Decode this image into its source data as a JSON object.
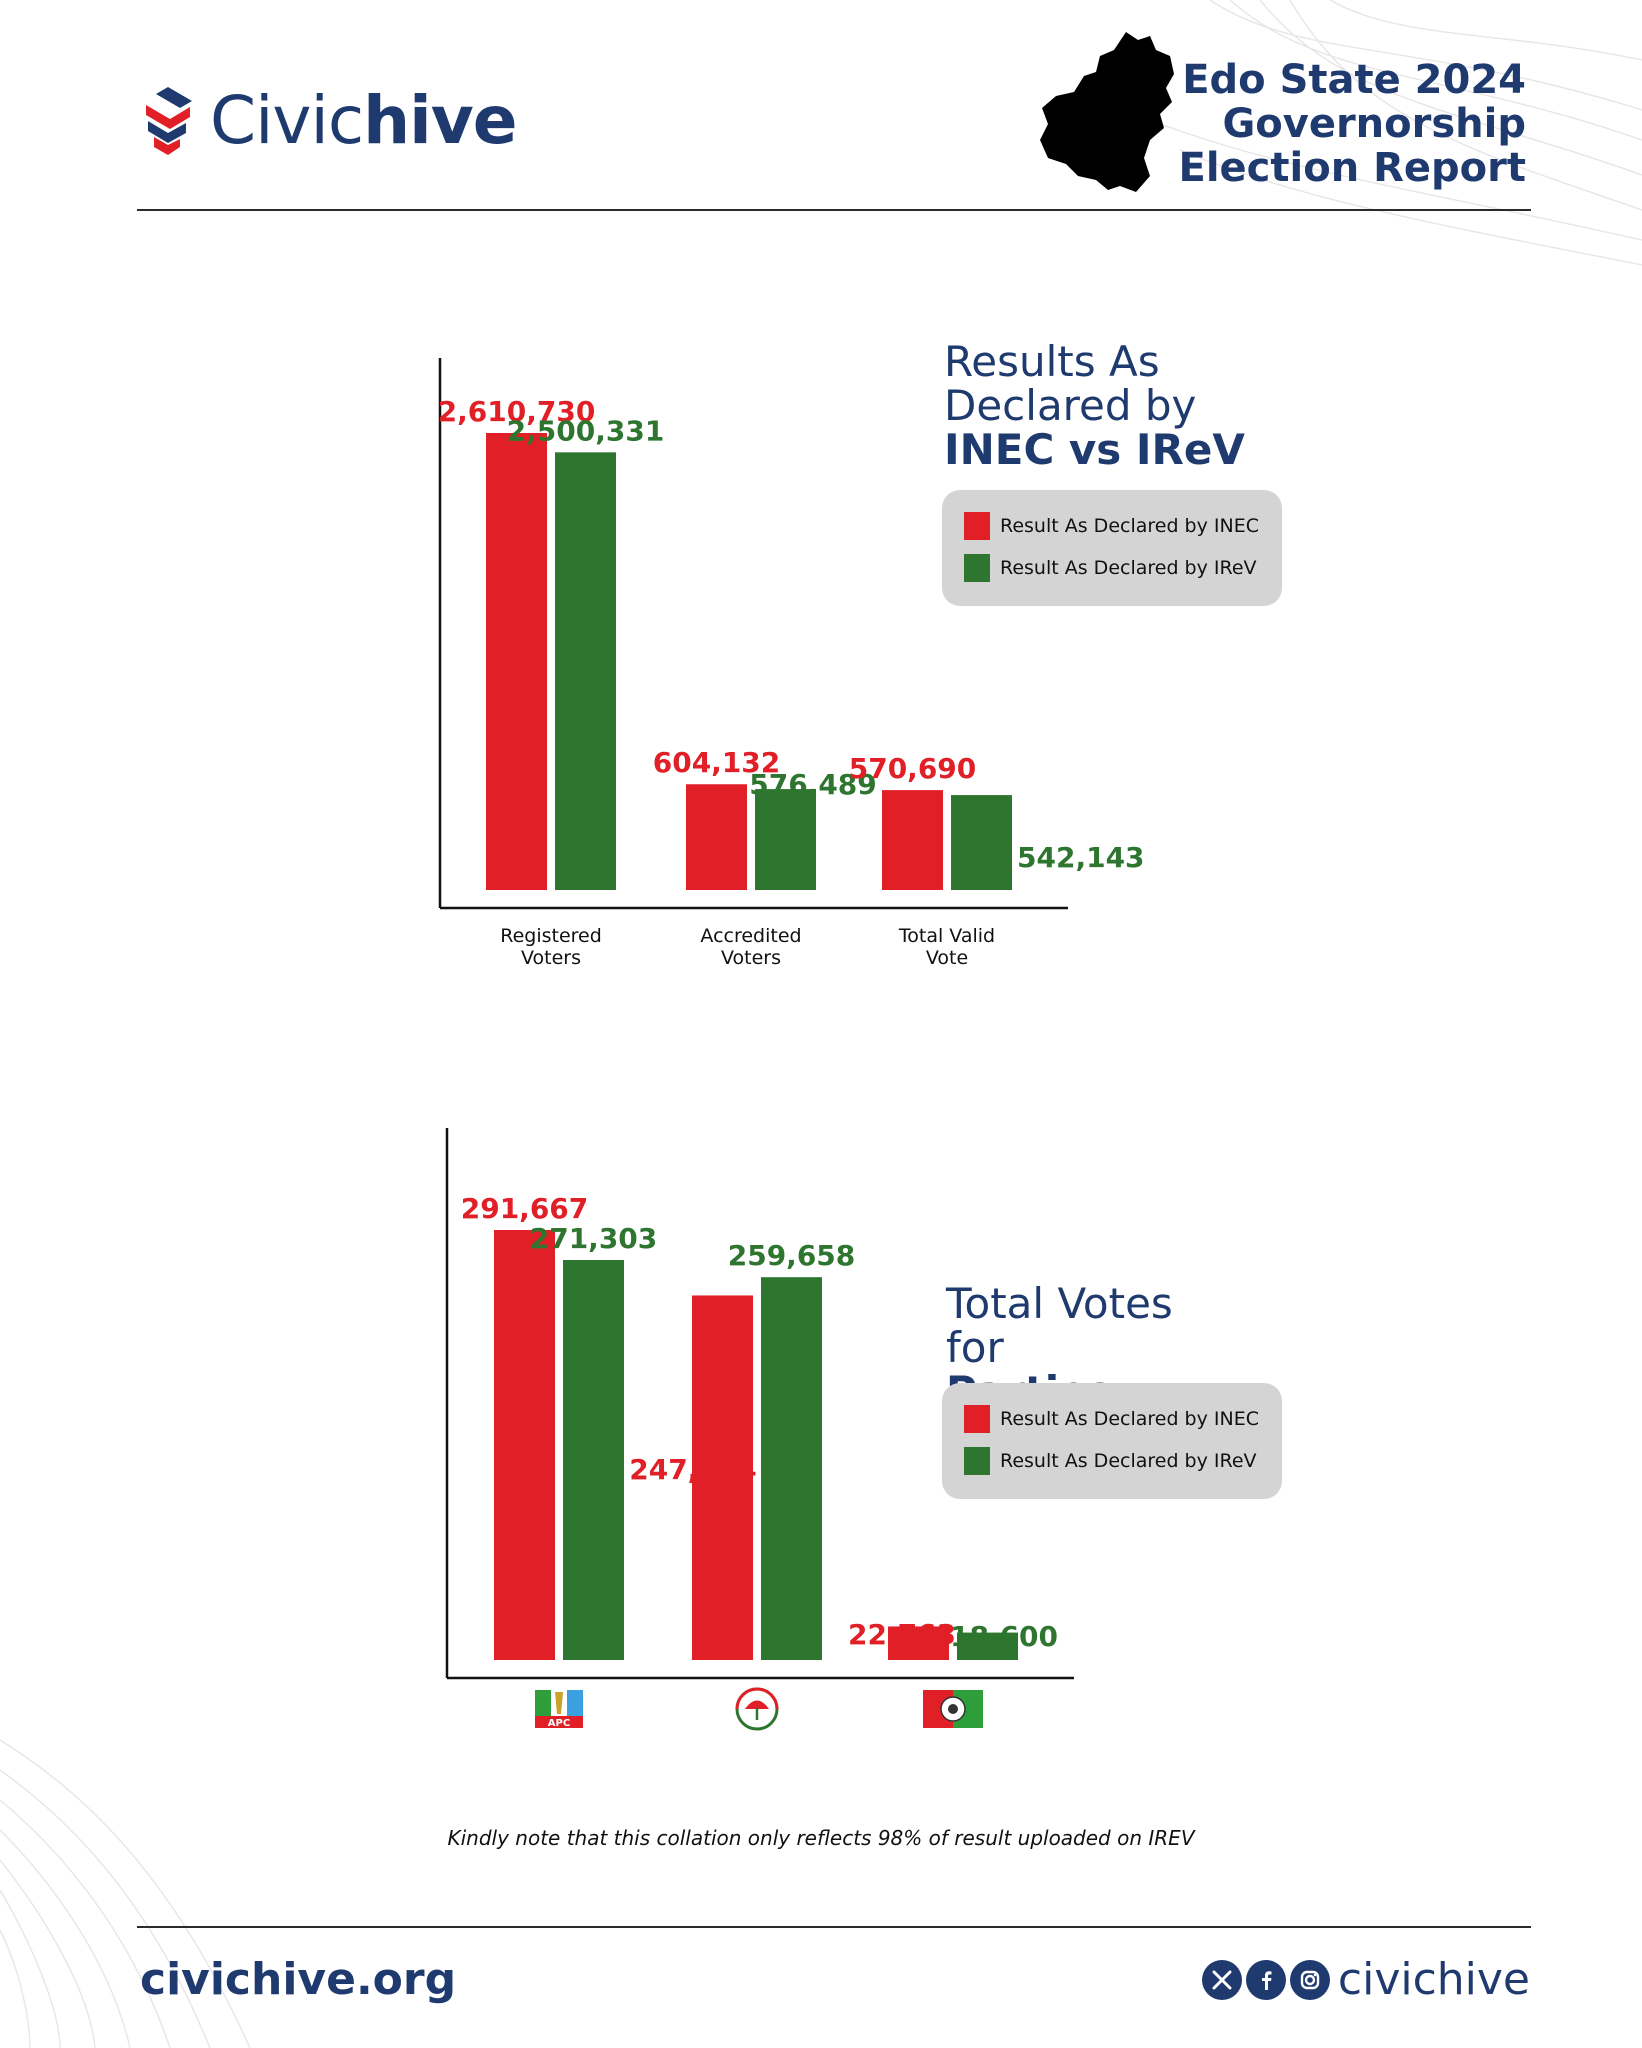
{
  "brand": {
    "name_part1": "Civic",
    "name_part2": "hive"
  },
  "report_title": {
    "line1": "Edo State 2024",
    "line2": "Governorship",
    "line3": "Election Report"
  },
  "colors": {
    "inec": "#e11f26",
    "irev": "#2e7630",
    "navy": "#1f3a6e"
  },
  "chart_data": [
    {
      "type": "bar",
      "title": "Results As Declared by INEC vs IReV",
      "title_lines": [
        "Results As",
        "Declared by"
      ],
      "title_bold": "INEC vs IReV",
      "categories": [
        "Registered Voters",
        "Accredited Voters",
        "Total Valid Vote"
      ],
      "category_lines": [
        [
          "Registered",
          "Voters"
        ],
        [
          "Accredited",
          "Voters"
        ],
        [
          "Total Valid",
          "Vote"
        ]
      ],
      "series": [
        {
          "name": "Result As Declared by INEC",
          "values": [
            2610730,
            604132,
            570690
          ],
          "labels": [
            "2,610,730",
            "604,132",
            "570,690"
          ]
        },
        {
          "name": "Result As Declared by IReV",
          "values": [
            2500331,
            576489,
            542143
          ],
          "labels": [
            "2,500,331",
            "576,489",
            "542,143"
          ]
        }
      ],
      "legend_placement": "right",
      "grid": false
    },
    {
      "type": "bar",
      "title": "Total Votes for Parties",
      "title_line1": "Total Votes",
      "title_for": "for",
      "title_bold": "Parties",
      "categories": [
        "APC",
        "PDP",
        "LP"
      ],
      "category_icons": [
        "apc-logo-icon",
        "pdp-logo-icon",
        "lp-logo-icon"
      ],
      "apc_logo_text": "APC",
      "series": [
        {
          "name": "Result As Declared by INEC",
          "values": [
            291667,
            247274,
            22763
          ],
          "labels": [
            "291,667",
            "247,274",
            "22,763"
          ]
        },
        {
          "name": "Result As Declared by IReV",
          "values": [
            271303,
            259658,
            18600
          ],
          "labels": [
            "271,303",
            "259,658",
            "18,600"
          ]
        }
      ],
      "legend_placement": "right",
      "grid": false
    }
  ],
  "legend": {
    "inec": "Result As Declared by INEC",
    "irev": "Result As Declared by IReV"
  },
  "note": "Kindly note that this collation only reflects 98% of result uploaded on IREV",
  "footer": {
    "website": "civichive.org",
    "handle": "civichive",
    "social_icons": [
      "x-icon",
      "facebook-icon",
      "instagram-icon"
    ]
  }
}
